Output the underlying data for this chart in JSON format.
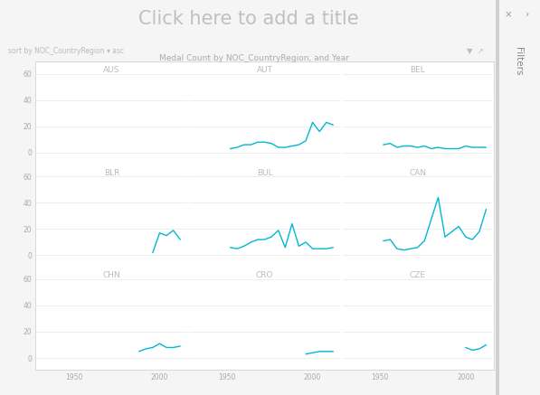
{
  "title": "Click here to add a title",
  "title_color": "#c0c0c0",
  "subtitle": "Medal Count by NOC_CountryRegion, and Year",
  "subtitle_color": "#aaaaaa",
  "sort_label": "sort by NOC_CountryRegion ▾ asc",
  "bg_color": "#f5f5f5",
  "panel_bg": "#ffffff",
  "line_color": "#00b8d4",
  "grid_color": "#e8e8e8",
  "label_color": "#bbbbbb",
  "tick_color": "#aaaaaa",
  "ylim": [
    -8,
    68
  ],
  "yticks": [
    0,
    20,
    40,
    60
  ],
  "rows": [
    [
      "AUS",
      "AUT",
      "BEL"
    ],
    [
      "BLR",
      "BUL",
      "CAN"
    ],
    [
      "CHN",
      "CRO",
      "CZE"
    ]
  ],
  "series": {
    "AUS": {
      "x": [],
      "y": []
    },
    "AUT": {
      "x": [
        1952,
        1956,
        1960,
        1964,
        1968,
        1972,
        1976,
        1980,
        1984,
        1988,
        1992,
        1996,
        2000,
        2004,
        2008,
        2012
      ],
      "y": [
        3,
        4,
        6,
        6,
        8,
        8,
        7,
        4,
        4,
        5,
        6,
        9,
        23,
        16,
        23,
        21
      ]
    },
    "BEL": {
      "x": [
        1952,
        1956,
        1960,
        1964,
        1968,
        1972,
        1976,
        1980,
        1984,
        1988,
        1992,
        1996,
        2000,
        2004,
        2008,
        2012
      ],
      "y": [
        6,
        7,
        4,
        5,
        5,
        4,
        5,
        3,
        4,
        3,
        3,
        3,
        5,
        4,
        4,
        4
      ]
    },
    "BLR": {
      "x": [
        1996,
        2000,
        2004,
        2008,
        2012
      ],
      "y": [
        2,
        17,
        15,
        19,
        12
      ]
    },
    "BUL": {
      "x": [
        1952,
        1956,
        1960,
        1964,
        1968,
        1972,
        1976,
        1980,
        1984,
        1988,
        1992,
        1996,
        2000,
        2004,
        2008,
        2012
      ],
      "y": [
        6,
        5,
        7,
        10,
        12,
        12,
        14,
        19,
        6,
        24,
        7,
        10,
        5,
        5,
        5,
        6
      ]
    },
    "CAN": {
      "x": [
        1952,
        1956,
        1960,
        1964,
        1968,
        1972,
        1976,
        1984,
        1988,
        1992,
        1996,
        2000,
        2004,
        2008,
        2012
      ],
      "y": [
        11,
        12,
        5,
        4,
        5,
        6,
        11,
        44,
        14,
        18,
        22,
        14,
        12,
        18,
        35
      ]
    },
    "CHN": {
      "x": [
        1988,
        1992,
        1996,
        2000,
        2004,
        2008,
        2012
      ],
      "y": [
        5,
        7,
        8,
        11,
        8,
        8,
        9
      ]
    },
    "CRO": {
      "x": [
        1996,
        2000,
        2004,
        2008,
        2012
      ],
      "y": [
        3,
        4,
        5,
        5,
        5
      ]
    },
    "CZE": {
      "x": [
        2000,
        2004,
        2008,
        2012
      ],
      "y": [
        8,
        6,
        7,
        10
      ]
    }
  },
  "xlim": [
    1928,
    2016
  ],
  "xticks": [
    1950,
    2000
  ],
  "border_color": "#d8d8d8",
  "scrollbar_color": "#c8c8c8",
  "filter_bg": "#f0f0f0",
  "filter_border": "#d0d0d0"
}
